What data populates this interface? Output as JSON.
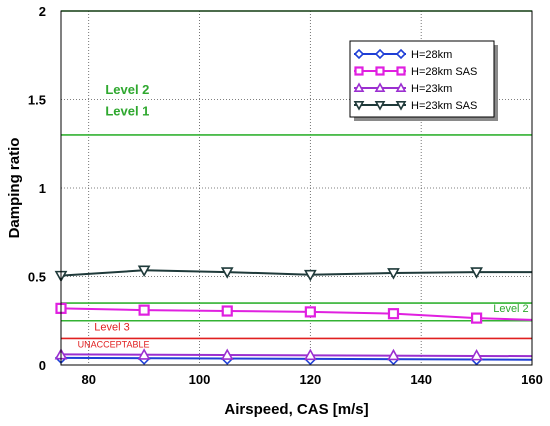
{
  "chart_data": {
    "type": "line",
    "xlabel": "Airspeed, CAS [m/s]",
    "ylabel": "Damping ratio",
    "xlim": [
      75,
      160
    ],
    "ylim": [
      0,
      2
    ],
    "xticks": [
      80,
      100,
      120,
      140,
      160
    ],
    "yticks": [
      0,
      0.5,
      1,
      1.5,
      2
    ],
    "yticklabels": [
      "0",
      "0.5",
      "1",
      "1.5",
      "2"
    ],
    "grid": true,
    "legend_position": "top-right",
    "series": [
      {
        "name": "H=28km",
        "color": "#1f3fd6",
        "marker": "diamond",
        "line": {
          "x": [
            75,
            160
          ],
          "y": [
            0.04,
            0.03
          ]
        },
        "markers": {
          "x": [
            75,
            90,
            105,
            120,
            135,
            150
          ],
          "y": [
            0.04,
            0.035,
            0.035,
            0.033,
            0.033,
            0.032
          ]
        }
      },
      {
        "name": "H=28km SAS",
        "color": "#e020e0",
        "marker": "square",
        "line": {
          "x": [
            75,
            90,
            105,
            120,
            135,
            150,
            160
          ],
          "y": [
            0.32,
            0.31,
            0.305,
            0.3,
            0.29,
            0.265,
            0.255
          ]
        },
        "markers": {
          "x": [
            75,
            90,
            105,
            120,
            135,
            150
          ],
          "y": [
            0.32,
            0.31,
            0.305,
            0.3,
            0.29,
            0.265
          ]
        }
      },
      {
        "name": "H=23km",
        "color": "#9b2fd0",
        "marker": "triangle-up",
        "line": {
          "x": [
            75,
            160
          ],
          "y": [
            0.06,
            0.05
          ]
        },
        "markers": {
          "x": [
            75,
            90,
            105,
            120,
            135,
            150
          ],
          "y": [
            0.058,
            0.057,
            0.056,
            0.055,
            0.054,
            0.053
          ]
        }
      },
      {
        "name": "H=23km SAS",
        "color": "#1f3a3a",
        "marker": "triangle-down",
        "line": {
          "x": [
            75,
            90,
            105,
            120,
            135,
            150,
            160
          ],
          "y": [
            0.505,
            0.535,
            0.525,
            0.51,
            0.52,
            0.525,
            0.525
          ]
        },
        "markers": {
          "x": [
            75,
            90,
            105,
            120,
            135,
            150
          ],
          "y": [
            0.505,
            0.535,
            0.525,
            0.51,
            0.52,
            0.525
          ]
        }
      }
    ],
    "reference_lines": [
      {
        "y": 2.0,
        "color": "#33b233"
      },
      {
        "y": 1.3,
        "color": "#33b233"
      },
      {
        "y": 0.35,
        "color": "#33b233"
      },
      {
        "y": 0.25,
        "color": "#33b233"
      },
      {
        "y": 0.15,
        "color": "#e02020"
      }
    ],
    "annotations": [
      {
        "text": "Level 2",
        "x": 83,
        "y": 1.53,
        "color": "#2fa82f",
        "size": "large"
      },
      {
        "text": "Level 1",
        "x": 83,
        "y": 1.41,
        "color": "#2fa82f",
        "size": "large"
      },
      {
        "text": "Level 2",
        "x": 153,
        "y": 0.3,
        "color": "#2fa82f",
        "size": "small"
      },
      {
        "text": "Level 3",
        "x": 81,
        "y": 0.195,
        "color": "#e02020",
        "size": "small"
      },
      {
        "text": "UNACCEPTABLE",
        "x": 78,
        "y": 0.1,
        "color": "#e02020",
        "size": "tiny"
      }
    ]
  }
}
